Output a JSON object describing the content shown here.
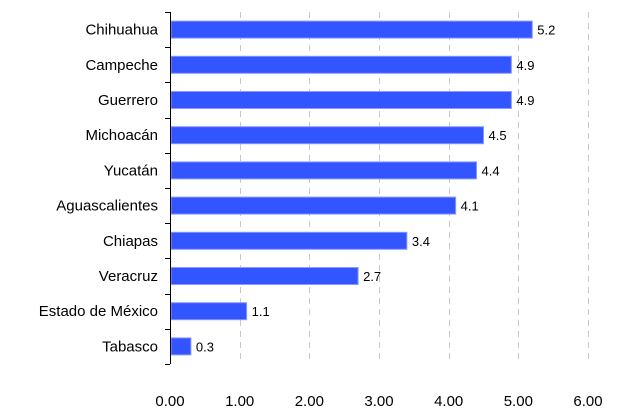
{
  "chart_data": {
    "type": "bar",
    "orientation": "horizontal",
    "categories": [
      "Chihuahua",
      "Campeche",
      "Guerrero",
      "Michoacán",
      "Yucatán",
      "Aguascalientes",
      "Chiapas",
      "Veracruz",
      "Estado de México",
      "Tabasco"
    ],
    "values": [
      5.2,
      4.9,
      4.9,
      4.5,
      4.4,
      4.1,
      3.4,
      2.7,
      1.1,
      0.3
    ],
    "data_labels": [
      "5.2",
      "4.9",
      "4.9",
      "4.5",
      "4.4",
      "4.1",
      "3.4",
      "2.7",
      "1.1",
      "0.3"
    ],
    "title": "",
    "xlabel": "",
    "ylabel": "",
    "xlim": [
      0,
      6
    ],
    "x_ticks": [
      0,
      1,
      2,
      3,
      4,
      5,
      6
    ],
    "x_tick_labels": [
      "0.00",
      "1.00",
      "2.00",
      "3.00",
      "4.00",
      "5.00",
      "6.00"
    ],
    "grid": "vertical dashed",
    "legend": "none",
    "bar_color": "#3355ff",
    "bar_edge_color": "#8899ff"
  }
}
